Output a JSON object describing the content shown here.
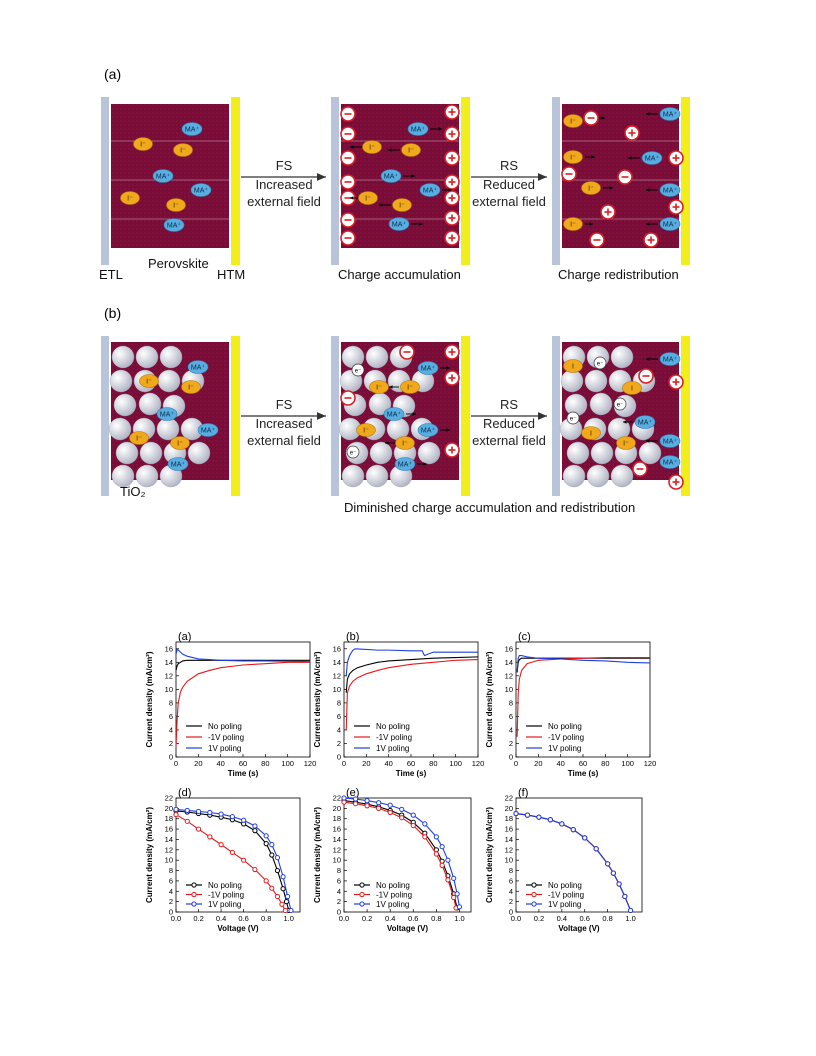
{
  "figure1": {
    "panel_a_label": "(a)",
    "panel_b_label": "(b)",
    "etl": "ETL",
    "perovskite": "Perovskite",
    "htm": "HTM",
    "tio2": "TiO₂",
    "fs": "FS",
    "fs_sub1": "Increased",
    "fs_sub2": "external field",
    "rs": "RS",
    "rs_sub1": "Reduced",
    "rs_sub2": "external field",
    "cap_accum": "Charge  accumulation",
    "cap_redis": "Charge  redistribution",
    "cap_dimin": "Diminished  charge  accumulation and  redistribution",
    "ma": "MA⁺",
    "iodide": "I⁻",
    "iodine": "I",
    "electron": "e⁻",
    "minus": "−",
    "plus": "+",
    "colors": {
      "perovskite": "#7a0c38",
      "etl": "#b9c3d9",
      "htm": "#f2ee1c",
      "ma": "#58aee0",
      "iodide": "#f0a81c",
      "pos": "#d81f26",
      "tio2": "#c9cbd6"
    }
  },
  "chart_data": [
    {
      "panel": "(a)",
      "type": "line",
      "xlabel": "Time (s)",
      "ylabel": "Current density (mA/cm²)",
      "xlim": [
        0,
        120
      ],
      "ylim": [
        0,
        17
      ],
      "xticks": [
        0,
        20,
        40,
        60,
        80,
        100,
        120
      ],
      "yticks": [
        0,
        2,
        4,
        6,
        8,
        10,
        12,
        14,
        16
      ],
      "legend": [
        "No poling",
        "-1V poling",
        "1V poling"
      ],
      "series": [
        {
          "name": "No poling",
          "color": "#000000",
          "x": [
            0,
            1,
            2,
            4,
            6,
            10,
            20,
            40,
            80,
            120
          ],
          "y": [
            12.8,
            13.5,
            13.8,
            14.0,
            14.2,
            14.3,
            14.3,
            14.3,
            14.3,
            14.3
          ]
        },
        {
          "name": "-1V poling",
          "color": "#e41a1c",
          "x": [
            0,
            1,
            2,
            4,
            6,
            10,
            20,
            30,
            40,
            60,
            80,
            100,
            120
          ],
          "y": [
            1.5,
            5.5,
            8.0,
            9.6,
            10.3,
            11.2,
            12.3,
            12.8,
            13.2,
            13.6,
            13.8,
            14.0,
            14.0
          ]
        },
        {
          "name": "1V poling",
          "color": "#1f3fe0",
          "x": [
            0,
            1,
            2,
            4,
            6,
            10,
            15,
            20,
            30,
            40,
            60,
            80,
            120
          ],
          "y": [
            15.2,
            15.9,
            15.8,
            15.5,
            15.2,
            14.9,
            14.7,
            14.5,
            14.4,
            14.3,
            14.2,
            14.2,
            14.1
          ]
        }
      ]
    },
    {
      "panel": "(b)",
      "type": "line",
      "xlabel": "Time (s)",
      "ylabel": "Current density (mA/cm²)",
      "xlim": [
        0,
        120
      ],
      "ylim": [
        0,
        17
      ],
      "xticks": [
        0,
        20,
        40,
        60,
        80,
        100,
        120
      ],
      "yticks": [
        0,
        2,
        4,
        6,
        8,
        10,
        12,
        14,
        16
      ],
      "legend": [
        "No poling",
        "-1V poling",
        "1V poling"
      ],
      "series": [
        {
          "name": "No poling",
          "color": "#000000",
          "x": [
            2,
            3,
            5,
            8,
            12,
            20,
            30,
            40,
            60,
            80,
            100,
            120
          ],
          "y": [
            9.5,
            11.5,
            12.3,
            12.8,
            13.2,
            13.6,
            14.0,
            14.2,
            14.4,
            14.6,
            14.7,
            14.8
          ]
        },
        {
          "name": "-1V poling",
          "color": "#e41a1c",
          "x": [
            2,
            3,
            5,
            8,
            12,
            20,
            30,
            40,
            60,
            80,
            100,
            120
          ],
          "y": [
            4.0,
            9.5,
            10.5,
            11.2,
            11.7,
            12.3,
            12.8,
            13.2,
            13.7,
            14.0,
            14.3,
            14.4
          ]
        },
        {
          "name": "1V poling",
          "color": "#1f3fe0",
          "x": [
            2,
            3,
            5,
            8,
            10,
            20,
            30,
            40,
            60,
            70,
            72,
            80,
            100,
            120
          ],
          "y": [
            12.0,
            14.0,
            15.0,
            15.8,
            16.0,
            15.9,
            15.8,
            15.8,
            15.7,
            15.7,
            15.0,
            15.5,
            15.5,
            15.5
          ]
        }
      ]
    },
    {
      "panel": "(c)",
      "type": "line",
      "xlabel": "Time (s)",
      "ylabel": "Current density (mA/cm²)",
      "xlim": [
        0,
        120
      ],
      "ylim": [
        0,
        17
      ],
      "xticks": [
        0,
        20,
        40,
        60,
        80,
        100,
        120
      ],
      "yticks": [
        0,
        2,
        4,
        6,
        8,
        10,
        12,
        14,
        16
      ],
      "legend": [
        "No poling",
        "-1V poling",
        "1V poling"
      ],
      "series": [
        {
          "name": "No poling",
          "color": "#000000",
          "x": [
            1,
            2,
            3,
            5,
            10,
            20,
            40,
            60,
            80,
            100,
            120
          ],
          "y": [
            12.5,
            14.0,
            14.4,
            14.6,
            14.6,
            14.6,
            14.6,
            14.6,
            14.6,
            14.6,
            14.6
          ]
        },
        {
          "name": "-1V poling",
          "color": "#e41a1c",
          "x": [
            1,
            2,
            3,
            5,
            10,
            20,
            40,
            60,
            80,
            100,
            120
          ],
          "y": [
            3.0,
            9.5,
            11.5,
            12.8,
            13.8,
            14.3,
            14.5,
            14.6,
            14.7,
            14.7,
            14.7
          ]
        },
        {
          "name": "1V poling",
          "color": "#1f3fe0",
          "x": [
            1,
            2,
            3,
            5,
            10,
            20,
            40,
            60,
            80,
            100,
            120
          ],
          "y": [
            12.8,
            14.6,
            15.0,
            15.0,
            14.8,
            14.6,
            14.5,
            14.3,
            14.2,
            14.0,
            13.9
          ]
        }
      ]
    },
    {
      "panel": "(d)",
      "type": "line",
      "xlabel": "Voltage (V)",
      "ylabel": "Current density (mA/cm²)",
      "xlim": [
        0,
        1.1
      ],
      "ylim": [
        0,
        22
      ],
      "xticks": [
        0.0,
        0.2,
        0.4,
        0.6,
        0.8,
        1.0
      ],
      "yticks": [
        0,
        2,
        4,
        6,
        8,
        10,
        12,
        14,
        16,
        18,
        20,
        22
      ],
      "legend": [
        "No poling",
        "-1V poling",
        "1V poling"
      ],
      "series": [
        {
          "name": "No poling",
          "color": "#000000",
          "x": [
            0,
            0.1,
            0.2,
            0.3,
            0.4,
            0.5,
            0.6,
            0.7,
            0.8,
            0.85,
            0.9,
            0.95,
            0.98,
            1.0
          ],
          "y": [
            19.5,
            19.3,
            19.0,
            18.7,
            18.3,
            17.8,
            17.0,
            15.7,
            13.2,
            11.0,
            8.0,
            4.5,
            2.0,
            0.3
          ]
        },
        {
          "name": "-1V poling",
          "color": "#e41a1c",
          "x": [
            0,
            0.1,
            0.2,
            0.3,
            0.4,
            0.5,
            0.6,
            0.7,
            0.8,
            0.85,
            0.9,
            0.94,
            0.97
          ],
          "y": [
            18.8,
            17.5,
            16.0,
            14.5,
            13.0,
            11.5,
            10.0,
            8.2,
            6.0,
            4.6,
            3.0,
            1.5,
            0.3
          ]
        },
        {
          "name": "1V poling",
          "color": "#1f3fe0",
          "x": [
            0,
            0.1,
            0.2,
            0.3,
            0.4,
            0.5,
            0.6,
            0.7,
            0.8,
            0.85,
            0.9,
            0.95,
            0.99,
            1.02
          ],
          "y": [
            19.8,
            19.6,
            19.4,
            19.2,
            18.9,
            18.4,
            17.7,
            16.6,
            14.7,
            13.0,
            10.5,
            6.8,
            3.0,
            0.3
          ]
        }
      ]
    },
    {
      "panel": "(e)",
      "type": "line",
      "xlabel": "Voltage (V)",
      "ylabel": "Current density (mA/cm²)",
      "xlim": [
        0,
        1.1
      ],
      "ylim": [
        0,
        22
      ],
      "xticks": [
        0.0,
        0.2,
        0.4,
        0.6,
        0.8,
        1.0
      ],
      "yticks": [
        0,
        2,
        4,
        6,
        8,
        10,
        12,
        14,
        16,
        18,
        20,
        22
      ],
      "legend": [
        "No poling",
        "-1V poling",
        "1V poling"
      ],
      "series": [
        {
          "name": "No poling",
          "color": "#000000",
          "x": [
            0,
            0.1,
            0.2,
            0.3,
            0.4,
            0.5,
            0.6,
            0.7,
            0.8,
            0.85,
            0.9,
            0.95,
            0.98
          ],
          "y": [
            21.5,
            21.2,
            20.8,
            20.3,
            19.6,
            18.7,
            17.3,
            15.2,
            12.0,
            9.8,
            7.0,
            3.5,
            0.8
          ]
        },
        {
          "name": "-1V poling",
          "color": "#e41a1c",
          "x": [
            0,
            0.1,
            0.2,
            0.3,
            0.4,
            0.5,
            0.6,
            0.7,
            0.8,
            0.85,
            0.9,
            0.95,
            0.97
          ],
          "y": [
            21.2,
            20.9,
            20.5,
            20.0,
            19.2,
            18.2,
            16.7,
            14.5,
            11.2,
            9.0,
            6.2,
            2.8,
            0.8
          ]
        },
        {
          "name": "1V poling",
          "color": "#1f3fe0",
          "x": [
            0,
            0.1,
            0.2,
            0.3,
            0.4,
            0.5,
            0.6,
            0.7,
            0.8,
            0.85,
            0.9,
            0.95,
            0.98,
            1.0
          ],
          "y": [
            22.0,
            21.8,
            21.5,
            21.1,
            20.6,
            19.8,
            18.7,
            17.0,
            14.5,
            12.6,
            10.0,
            6.5,
            3.5,
            1.0
          ]
        }
      ]
    },
    {
      "panel": "(f)",
      "type": "line",
      "xlabel": "Voltage (V)",
      "ylabel": "Current density (mA/cm²)",
      "xlim": [
        0,
        1.1
      ],
      "ylim": [
        0,
        22
      ],
      "xticks": [
        0.0,
        0.2,
        0.4,
        0.6,
        0.8,
        1.0
      ],
      "yticks": [
        0,
        2,
        4,
        6,
        8,
        10,
        12,
        14,
        16,
        18,
        20,
        22
      ],
      "legend": [
        "No poling",
        "-1V poling",
        "1V poling"
      ],
      "series": [
        {
          "name": "No poling",
          "color": "#000000",
          "x": [
            0,
            0.1,
            0.2,
            0.3,
            0.4,
            0.5,
            0.6,
            0.7,
            0.8,
            0.85,
            0.9,
            0.95,
            1.0
          ],
          "y": [
            19.0,
            18.7,
            18.3,
            17.8,
            17.0,
            15.9,
            14.3,
            12.2,
            9.3,
            7.5,
            5.4,
            3.0,
            0.3
          ]
        },
        {
          "name": "-1V poling",
          "color": "#e41a1c",
          "x": [
            0,
            0.1,
            0.2,
            0.3,
            0.4,
            0.5,
            0.6,
            0.7,
            0.8,
            0.85,
            0.9,
            0.95,
            1.0
          ],
          "y": [
            19.0,
            18.7,
            18.3,
            17.8,
            17.0,
            15.9,
            14.3,
            12.2,
            9.3,
            7.5,
            5.4,
            3.0,
            0.3
          ]
        },
        {
          "name": "1V poling",
          "color": "#1f3fe0",
          "x": [
            0,
            0.1,
            0.2,
            0.3,
            0.4,
            0.5,
            0.6,
            0.7,
            0.8,
            0.85,
            0.9,
            0.95,
            1.0
          ],
          "y": [
            19.0,
            18.7,
            18.3,
            17.8,
            17.0,
            15.9,
            14.3,
            12.2,
            9.3,
            7.5,
            5.4,
            3.0,
            0.3
          ]
        }
      ]
    }
  ]
}
